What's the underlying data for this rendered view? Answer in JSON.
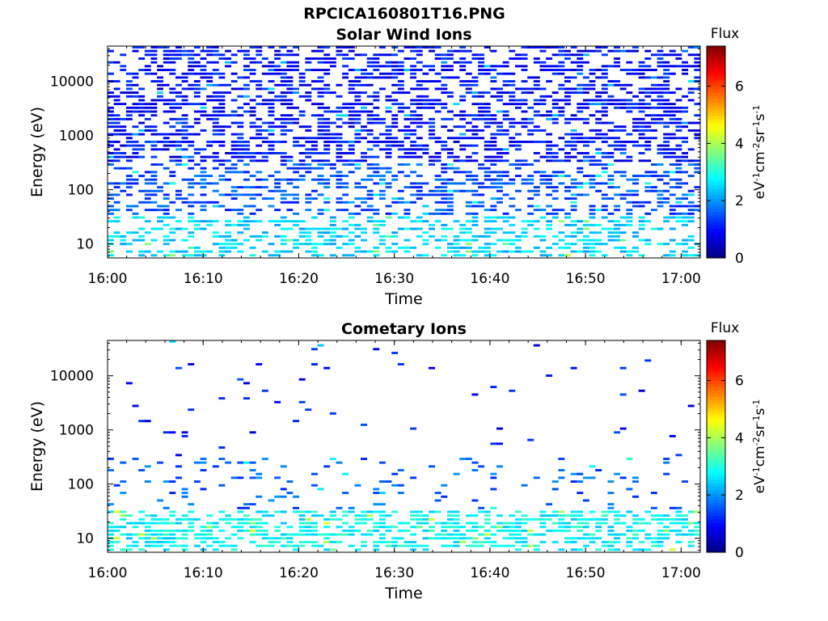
{
  "figure_title": "RPCICA160801T16.PNG",
  "chart_data": [
    {
      "type": "heatmap",
      "title": "Solar Wind Ions",
      "xlabel": "Time",
      "ylabel": "Energy (eV)",
      "x_ticks": [
        "16:00",
        "16:10",
        "16:20",
        "16:30",
        "16:40",
        "16:50",
        "17:00"
      ],
      "x_range": [
        "16:00",
        "17:02"
      ],
      "y_scale": "log",
      "y_ticks": [
        10,
        100,
        1000,
        10000
      ],
      "y_range": [
        5.5,
        45000
      ],
      "colorbar": {
        "label_top": "Flux",
        "unit": "eV-1cm-2sr-1s-1",
        "ticks": [
          0,
          2,
          4,
          6
        ],
        "range": [
          0,
          7.4
        ],
        "colormap": "jet"
      },
      "dominant_flux_by_energy": [
        {
          "energy_band": "above 300 eV",
          "typical_flux": 1.0
        },
        {
          "energy_band": "30-300 eV",
          "typical_flux": 1.5
        },
        {
          "energy_band": "below 30 eV",
          "typical_flux": 2.5
        }
      ]
    },
    {
      "type": "heatmap",
      "title": "Cometary Ions",
      "xlabel": "Time",
      "ylabel": "Energy (eV)",
      "x_ticks": [
        "16:00",
        "16:10",
        "16:20",
        "16:30",
        "16:40",
        "16:50",
        "17:00"
      ],
      "x_range": [
        "16:00",
        "17:02"
      ],
      "y_scale": "log",
      "y_ticks": [
        10,
        100,
        1000,
        10000
      ],
      "y_range": [
        5.5,
        45000
      ],
      "colorbar": {
        "label_top": "Flux",
        "unit": "eV-1cm-2sr-1s-1",
        "ticks": [
          0,
          2,
          4,
          6
        ],
        "range": [
          0,
          7.4
        ],
        "colormap": "jet"
      },
      "dominant_flux_by_energy": [
        {
          "energy_band": "above 300 eV",
          "typical_flux": 1.1
        },
        {
          "energy_band": "30-300 eV",
          "typical_flux": 1.6
        },
        {
          "energy_band": "below 30 eV",
          "typical_flux": 2.8
        }
      ]
    }
  ]
}
